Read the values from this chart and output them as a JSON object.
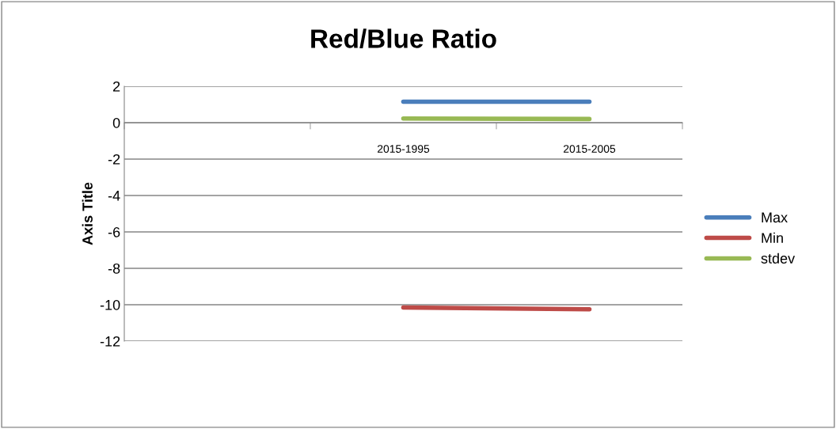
{
  "chart_data": {
    "type": "line",
    "title": "Red/Blue Ratio",
    "ylabel": "Axis Title",
    "categories": [
      null,
      "2015-1995",
      "2015-2005"
    ],
    "series": [
      {
        "name": "Max",
        "color": "#4a7ebb",
        "values": [
          null,
          1.15,
          1.15
        ]
      },
      {
        "name": "Min",
        "color": "#be4b48",
        "values": [
          null,
          -10.15,
          -10.25
        ]
      },
      {
        "name": "stdev",
        "color": "#98b954",
        "values": [
          null,
          0.23,
          0.2
        ]
      }
    ],
    "ylim": [
      -12,
      2
    ],
    "yticks": [
      -12,
      -10,
      -8,
      -6,
      -4,
      -2,
      0,
      2
    ],
    "grid": "y",
    "legend": "right",
    "marker": "none",
    "line_style": "solid"
  }
}
